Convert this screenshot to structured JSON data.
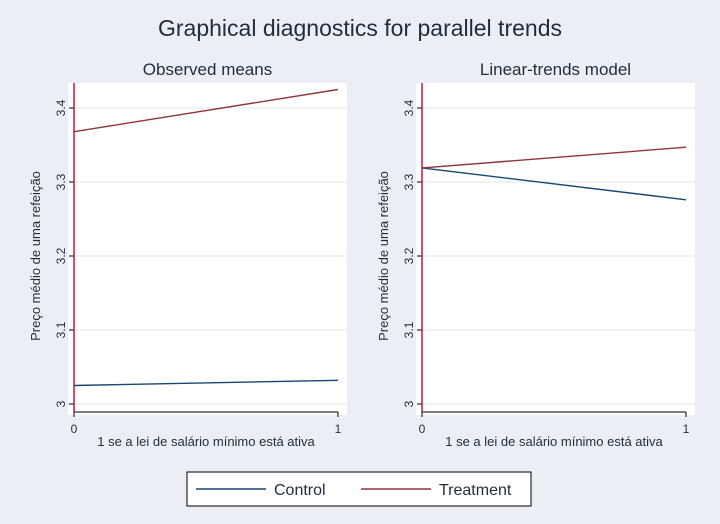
{
  "figure": {
    "title": "Graphical diagnostics for parallel trends",
    "legend": [
      {
        "name": "Control",
        "color": "#1a476f"
      },
      {
        "name": "Treatment",
        "color": "#90353b"
      }
    ]
  },
  "colors": {
    "background": "#ebeef4",
    "plot_area": "#ffffff",
    "grid": "#e3e6eb",
    "axis": "#000000",
    "vline": "#c10534"
  },
  "chart_data": [
    {
      "type": "line",
      "title": "Observed means",
      "xlabel": "1 se a lei de salário mínimo está ativa",
      "ylabel": "Preço médio de uma refeição",
      "x": [
        0,
        1
      ],
      "xticks": [
        "0",
        "1"
      ],
      "yticks": [
        "3",
        "3.1",
        "3.2",
        "3.3",
        "3.4"
      ],
      "xlim": [
        0,
        1
      ],
      "ylim": [
        3.0,
        3.4
      ],
      "grid": true,
      "reference_line_x": 0,
      "series": [
        {
          "name": "Control",
          "values": [
            3.025,
            3.032
          ]
        },
        {
          "name": "Treatment",
          "values": [
            3.368,
            3.425
          ]
        }
      ]
    },
    {
      "type": "line",
      "title": "Linear-trends model",
      "xlabel": "1 se a lei de salário mínimo está ativa",
      "ylabel": "Preço médio de uma refeição",
      "x": [
        0,
        1
      ],
      "xticks": [
        "0",
        "1"
      ],
      "yticks": [
        "3",
        "3.1",
        "3.2",
        "3.3",
        "3.4"
      ],
      "xlim": [
        0,
        1
      ],
      "ylim": [
        3.0,
        3.4
      ],
      "grid": true,
      "reference_line_x": 0,
      "series": [
        {
          "name": "Control",
          "values": [
            3.319,
            3.276
          ]
        },
        {
          "name": "Treatment",
          "values": [
            3.319,
            3.347
          ]
        }
      ]
    }
  ]
}
